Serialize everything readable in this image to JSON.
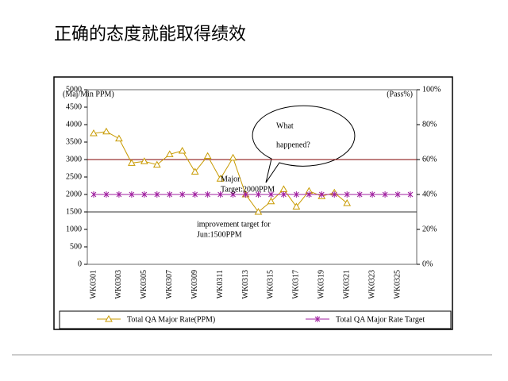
{
  "title": "正确的态度就能取得绩效",
  "chart_data": {
    "type": "line",
    "y_label": "(Maj/Min PPM)",
    "y2_label": "(Pass%)",
    "categories": [
      "WK0301",
      null,
      "WK0303",
      null,
      "WK0305",
      null,
      "WK0307",
      null,
      "WK0309",
      null,
      "WK0311",
      null,
      "WK0313",
      null,
      "WK0315",
      null,
      "WK0317",
      null,
      "WK0319",
      null,
      "WK0321",
      null,
      "WK0323",
      null,
      "WK0325",
      null
    ],
    "series": [
      {
        "name": "Total QA Major Rate(PPM)",
        "color": "#c89a00",
        "marker": "triangle",
        "values": [
          3750,
          3800,
          3600,
          2900,
          2950,
          2850,
          3150,
          3250,
          2650,
          3100,
          2450,
          3050,
          2000,
          1500,
          1800,
          2150,
          1650,
          2100,
          1950,
          2050,
          1750,
          null,
          null,
          null,
          null,
          null
        ]
      },
      {
        "name": "Total QA Major Rate Target",
        "color": "#a020a0",
        "marker": "star",
        "values": [
          2000,
          2000,
          2000,
          2000,
          2000,
          2000,
          2000,
          2000,
          2000,
          2000,
          2000,
          2000,
          2000,
          2000,
          2000,
          2000,
          2000,
          2000,
          2000,
          2000,
          2000,
          2000,
          2000,
          2000,
          2000,
          2000
        ]
      }
    ],
    "reference_lines": [
      3000,
      1500
    ],
    "ylim": [
      0,
      5000
    ],
    "yticks": [
      0,
      500,
      1000,
      1500,
      2000,
      2500,
      3000,
      3500,
      4000,
      4500,
      5000
    ],
    "y2lim": [
      0,
      100
    ],
    "y2ticks": [
      {
        "value": 0,
        "label": "0%"
      },
      {
        "value": 20,
        "label": "20%"
      },
      {
        "value": 40,
        "label": "40%"
      },
      {
        "value": 60,
        "label": "60%"
      },
      {
        "value": 80,
        "label": "80%"
      },
      {
        "value": 100,
        "label": "100%"
      }
    ],
    "annotations": [
      "Major",
      "Target:2000PPM",
      "improvement target for",
      "Jun:1500PPM",
      "What",
      "happened?"
    ],
    "legend": "bottom"
  }
}
